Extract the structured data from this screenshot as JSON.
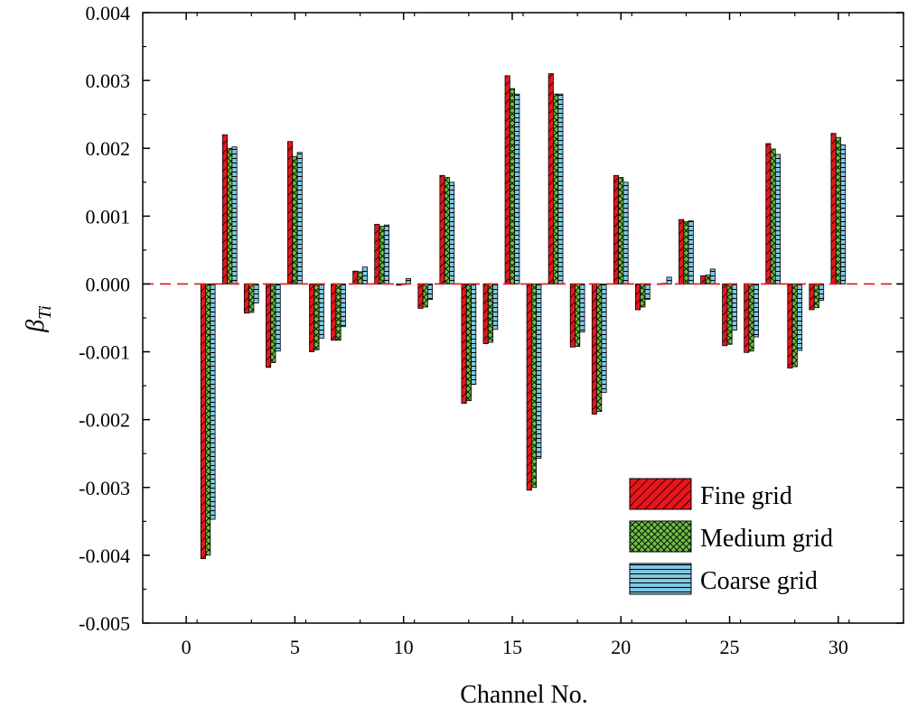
{
  "chart_data": {
    "type": "bar",
    "xlabel": "Channel No.",
    "ylabel_main": "β",
    "ylabel_sub": "Ti",
    "ylim": [
      -0.005,
      0.004
    ],
    "xlim": [
      -2,
      33
    ],
    "y_ticks": [
      -0.005,
      -0.004,
      -0.003,
      -0.002,
      -0.001,
      0.0,
      0.001,
      0.002,
      0.003,
      0.004
    ],
    "y_tick_labels": [
      "-0.005",
      "-0.004",
      "-0.003",
      "-0.002",
      "-0.001",
      "0.000",
      "0.001",
      "0.002",
      "0.003",
      "0.004"
    ],
    "x_ticks": [
      0,
      5,
      10,
      15,
      20,
      25,
      30
    ],
    "x_tick_labels": [
      "0",
      "5",
      "10",
      "15",
      "20",
      "25",
      "30"
    ],
    "reference_line": {
      "y": 0.0,
      "color": "#e8161b",
      "style": "dashed"
    },
    "legend_placement": "bottom-right",
    "categories": [
      1,
      2,
      3,
      4,
      5,
      6,
      7,
      8,
      9,
      10,
      11,
      12,
      13,
      14,
      15,
      16,
      17,
      18,
      19,
      20,
      21,
      22,
      23,
      24,
      25,
      26,
      27,
      28,
      29,
      30
    ],
    "series": [
      {
        "name": "Fine grid",
        "color": "#e8161b",
        "pattern": "diagonal",
        "values": [
          -0.00405,
          0.0022,
          -0.00043,
          -0.00123,
          0.0021,
          -0.001,
          -0.00083,
          0.00019,
          0.00088,
          -2e-05,
          -0.00036,
          0.0016,
          -0.00176,
          -0.00088,
          0.00307,
          -0.00304,
          0.0031,
          -0.00093,
          -0.00192,
          0.0016,
          -0.00038,
          0.0,
          0.00095,
          0.00012,
          -0.00091,
          -0.00101,
          0.00207,
          -0.00124,
          -0.00038,
          0.00222
        ]
      },
      {
        "name": "Medium grid",
        "color": "#6ebf45",
        "pattern": "crosshatch",
        "values": [
          -0.004,
          0.002,
          -0.00042,
          -0.00116,
          0.00188,
          -0.00097,
          -0.00083,
          0.00018,
          0.00085,
          -1e-05,
          -0.00034,
          0.00157,
          -0.00172,
          -0.00086,
          0.00288,
          -0.003,
          0.0028,
          -0.00092,
          -0.00188,
          0.00157,
          -0.00034,
          1e-05,
          0.00092,
          0.00013,
          -0.00089,
          -0.00099,
          0.00199,
          -0.00122,
          -0.00035,
          0.00216
        ]
      },
      {
        "name": "Coarse grid",
        "color": "#7ec8e3",
        "pattern": "horizontal",
        "values": [
          -0.00347,
          0.00202,
          -0.00028,
          -0.00099,
          0.00194,
          -0.0008,
          -0.00063,
          0.00025,
          0.00087,
          8e-05,
          -0.00023,
          0.0015,
          -0.00148,
          -0.00067,
          0.0028,
          -0.00257,
          0.0028,
          -0.00071,
          -0.0016,
          0.0015,
          -0.00023,
          0.0001,
          0.00093,
          0.00022,
          -0.00068,
          -0.00078,
          0.00191,
          -0.00098,
          -0.00024,
          0.00205
        ]
      }
    ]
  }
}
